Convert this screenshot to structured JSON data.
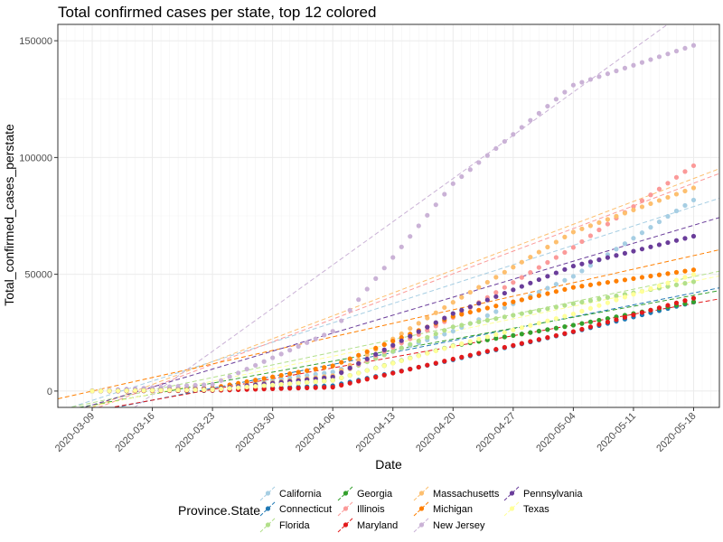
{
  "chart_data": {
    "type": "scatter",
    "title": "Total confirmed cases per state, top 12 colored",
    "xlabel": "Date",
    "ylabel": "Total_confirmed_cases_perstate",
    "x_ticks": [
      "2020-03-09",
      "2020-03-16",
      "2020-03-23",
      "2020-03-30",
      "2020-04-06",
      "2020-04-13",
      "2020-04-20",
      "2020-04-27",
      "2020-05-04",
      "2020-05-11",
      "2020-05-18"
    ],
    "y_ticks": [
      "0",
      "50000",
      "100000",
      "150000"
    ],
    "xlim": [
      "2020-03-05",
      "2020-05-21"
    ],
    "ylim": [
      -7000,
      157000
    ],
    "grid": true,
    "legend": {
      "title": "Province.State",
      "position": "bottom"
    },
    "trend_lines": "dashed linear fit per state",
    "series": [
      {
        "name": "California",
        "color": "#a6cee3",
        "start": "2020-03-09",
        "end": "2020-05-18",
        "values": [
          114,
          1250,
          8150,
          25600,
          49100,
          81800
        ],
        "fit_start": -4000,
        "fit_end": 79000
      },
      {
        "name": "Connecticut",
        "color": "#1f78b4",
        "start": "2020-03-09",
        "end": "2020-05-18",
        "values": [
          2,
          230,
          2300,
          13400,
          25300,
          38100
        ],
        "fit_start": -9000,
        "fit_end": 42000
      },
      {
        "name": "Florida",
        "color": "#b2df8a",
        "start": "2020-03-09",
        "end": "2020-05-18",
        "values": [
          14,
          830,
          6500,
          27500,
          37400,
          46800
        ],
        "fit_start": -5000,
        "fit_end": 49000
      },
      {
        "name": "Georgia",
        "color": "#33a02c",
        "start": "2020-03-09",
        "end": "2020-05-18",
        "values": [
          12,
          620,
          4600,
          19400,
          28200,
          38200
        ],
        "fit_start": -6000,
        "fit_end": 41000
      },
      {
        "name": "Illinois",
        "color": "#fb9a99",
        "start": "2020-03-09",
        "end": "2020-05-18",
        "values": [
          7,
          1050,
          6000,
          31500,
          61500,
          96500
        ],
        "fit_start": -8000,
        "fit_end": 89000
      },
      {
        "name": "Maryland",
        "color": "#e31a1c",
        "start": "2020-03-09",
        "end": "2020-05-18",
        "values": [
          5,
          290,
          1660,
          13680,
          25460,
          39760
        ],
        "fit_start": -8500,
        "fit_end": 37500
      },
      {
        "name": "Massachusetts",
        "color": "#fdbf6f",
        "start": "2020-03-09",
        "end": "2020-05-18",
        "values": [
          41,
          780,
          6600,
          38000,
          68100,
          87000
        ],
        "fit_start": -7000,
        "fit_end": 91000
      },
      {
        "name": "Michigan",
        "color": "#ff7f00",
        "start": "2020-03-09",
        "end": "2020-05-18",
        "values": [
          1,
          1300,
          10800,
          32000,
          44400,
          51900
        ],
        "fit_start": 0,
        "fit_end": 58000
      },
      {
        "name": "New Jersey",
        "color": "#cab2d6",
        "start": "2020-03-09",
        "end": "2020-05-18",
        "values": [
          6,
          2900,
          25600,
          88800,
          131000,
          148000
        ],
        "fit_start": -20000,
        "fit_end": 165000
      },
      {
        "name": "Pennsylvania",
        "color": "#6a3d9a",
        "start": "2020-03-09",
        "end": "2020-05-18",
        "values": [
          10,
          850,
          6000,
          33200,
          53500,
          66300
        ],
        "fit_start": -6000,
        "fit_end": 71000
      },
      {
        "name": "Texas",
        "color": "#ffff99",
        "start": "2020-03-09",
        "end": "2020-05-18",
        "values": [
          13,
          600,
          4600,
          19300,
          33000,
          49900
        ],
        "fit_start": -6500,
        "fit_end": 47000
      }
    ]
  }
}
